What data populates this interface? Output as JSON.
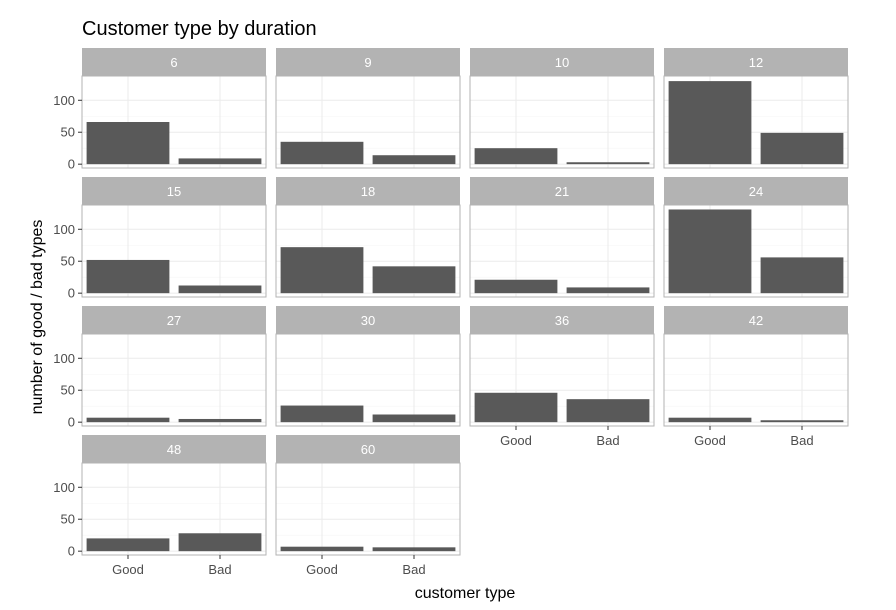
{
  "chart_data": {
    "type": "bar",
    "title": "Customer type by duration",
    "xlabel": "customer type",
    "ylabel": "number of good / bad types",
    "categories": [
      "Good",
      "Bad"
    ],
    "y_ticks": [
      0,
      50,
      100
    ],
    "ylim": [
      -6,
      138
    ],
    "grid": true,
    "facets": [
      {
        "label": "6",
        "values": [
          66,
          9
        ]
      },
      {
        "label": "9",
        "values": [
          35,
          14
        ]
      },
      {
        "label": "10",
        "values": [
          25,
          3
        ]
      },
      {
        "label": "12",
        "values": [
          130,
          49
        ]
      },
      {
        "label": "15",
        "values": [
          52,
          12
        ]
      },
      {
        "label": "18",
        "values": [
          72,
          42
        ]
      },
      {
        "label": "21",
        "values": [
          21,
          9
        ]
      },
      {
        "label": "24",
        "values": [
          131,
          56
        ]
      },
      {
        "label": "27",
        "values": [
          7,
          5
        ]
      },
      {
        "label": "30",
        "values": [
          26,
          12
        ]
      },
      {
        "label": "36",
        "values": [
          46,
          36
        ]
      },
      {
        "label": "42",
        "values": [
          7,
          3
        ]
      },
      {
        "label": "48",
        "values": [
          20,
          28
        ]
      },
      {
        "label": "60",
        "values": [
          7,
          6
        ]
      }
    ],
    "colors": {
      "bar": "#595959",
      "strip": "#b3b3b3",
      "grid_major": "#ebebeb",
      "grid_minor": "#f5f5f5",
      "panel_border": "#b3b3b3"
    }
  }
}
